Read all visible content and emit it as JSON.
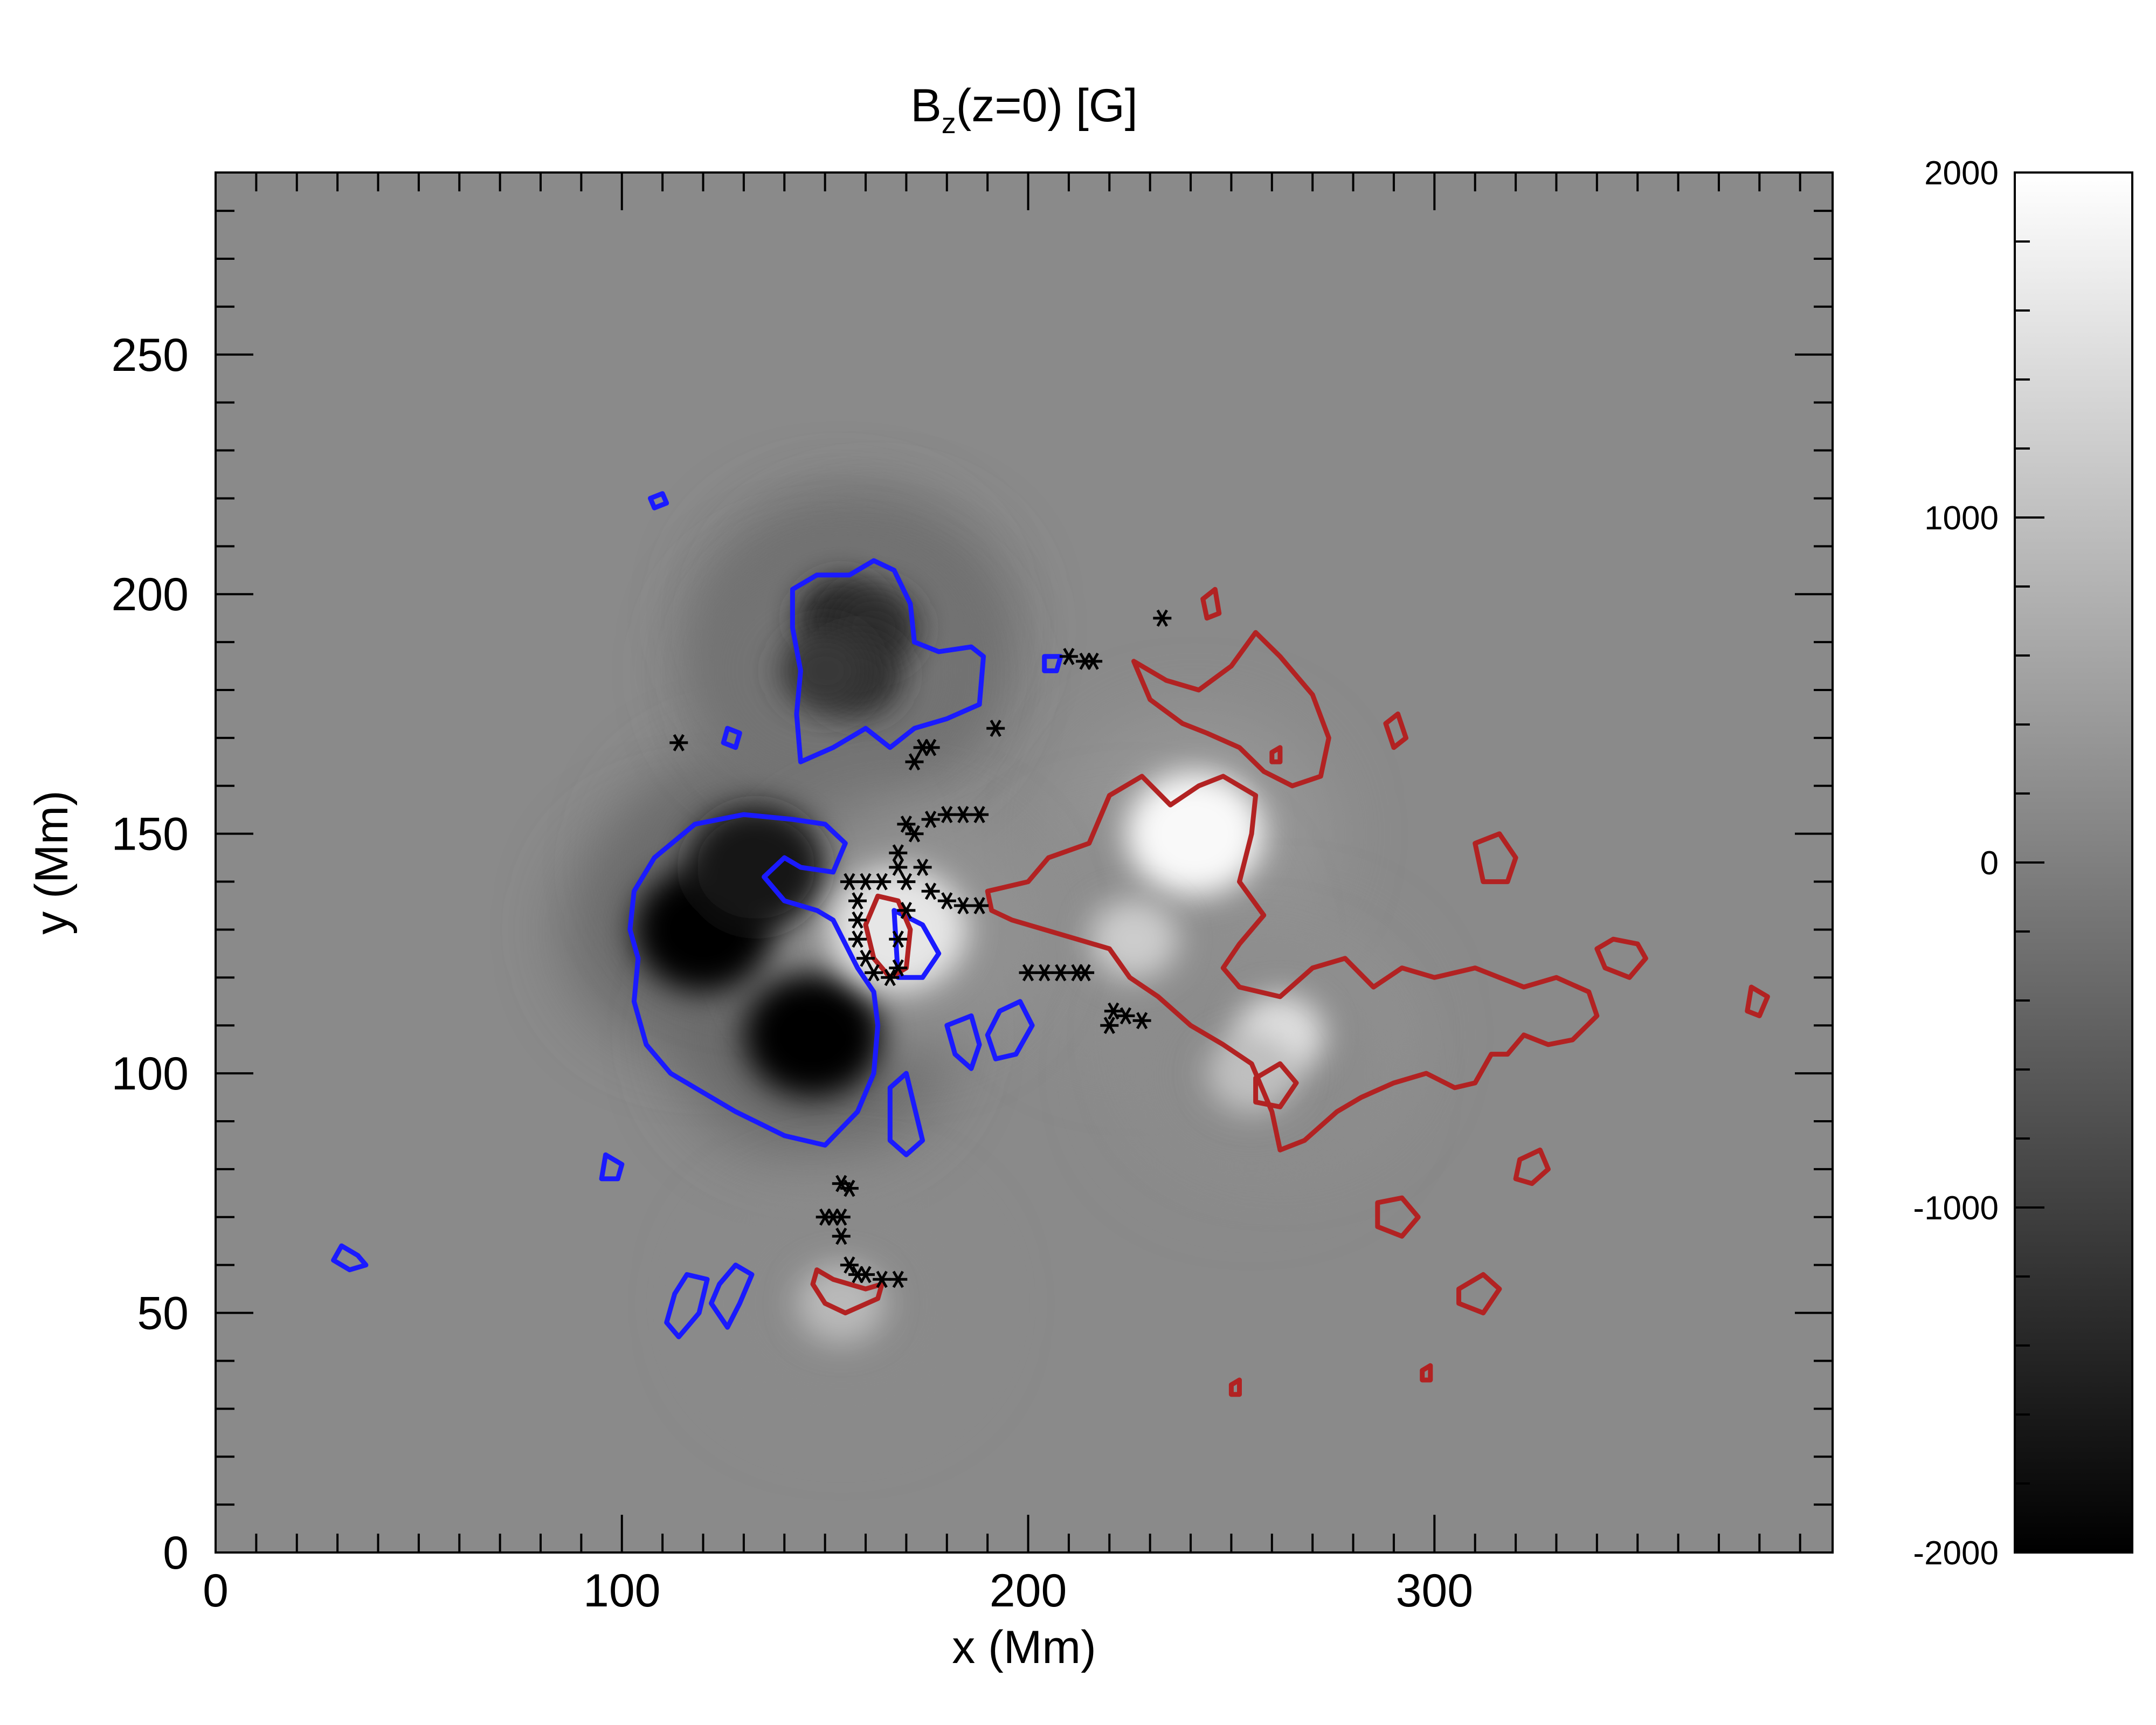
{
  "chart_data": {
    "type": "heatmap",
    "title": "B",
    "title_sub": "z",
    "title_rest": "(z=0) [G]",
    "xlabel": "x (Mm)",
    "ylabel": "y (Mm)",
    "xlim": [
      0,
      398
    ],
    "ylim": [
      0,
      288
    ],
    "x_ticks": [
      0,
      100,
      200,
      300
    ],
    "y_ticks": [
      0,
      50,
      100,
      150,
      200,
      250
    ],
    "x_tick_labels": [
      "0",
      "100",
      "200",
      "300"
    ],
    "y_tick_labels": [
      "0",
      "50",
      "100",
      "150",
      "200",
      "250"
    ],
    "colorbar": {
      "range": [
        -2000,
        2000
      ],
      "ticks": [
        2000,
        1000,
        0,
        -1000,
        -2000
      ],
      "tick_labels": [
        "2000",
        "1000",
        "0",
        "-1000",
        "-2000"
      ],
      "colormap": "grayscale"
    },
    "colors": {
      "negative_contour": "#1a1aff",
      "positive_contour": "#b22222",
      "markers": "#000000"
    },
    "features": {
      "negative_spots": [
        {
          "x": 120,
          "y": 130,
          "value": -1900
        },
        {
          "x": 147,
          "y": 108,
          "value": -2000
        },
        {
          "x": 133,
          "y": 143,
          "value": -1700
        },
        {
          "x": 154,
          "y": 195,
          "value": -1400
        },
        {
          "x": 162,
          "y": 193,
          "value": -1300
        },
        {
          "x": 158,
          "y": 183,
          "value": -1300
        },
        {
          "x": 150,
          "y": 184,
          "value": -1100
        }
      ],
      "positive_spots": [
        {
          "x": 241,
          "y": 150,
          "value": 1900
        },
        {
          "x": 226,
          "y": 128,
          "value": 1200
        },
        {
          "x": 262,
          "y": 108,
          "value": 1500
        },
        {
          "x": 168,
          "y": 130,
          "value": 1600
        },
        {
          "x": 255,
          "y": 100,
          "value": 1000
        },
        {
          "x": 154,
          "y": 52,
          "value": 900
        }
      ]
    }
  }
}
